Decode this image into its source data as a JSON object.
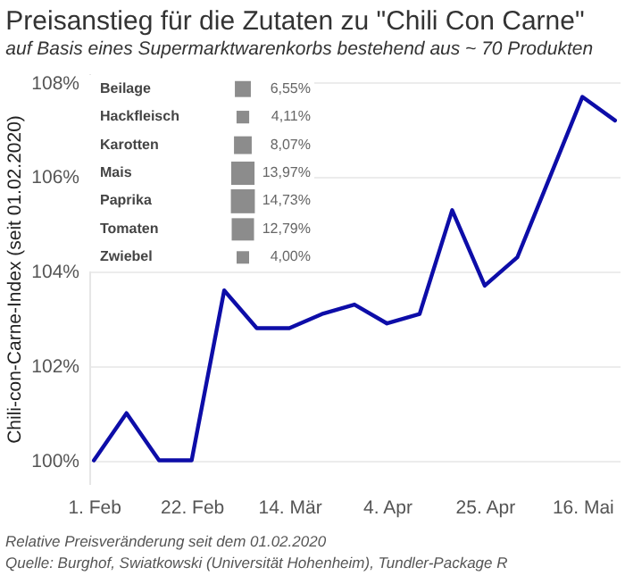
{
  "chart_data": [
    {
      "type": "line",
      "title": "Preisanstieg für die Zutaten zu \"Chili Con Carne\"",
      "subtitle": "auf Basis eines Supermarktwarenkorbs bestehend aus ~ 70 Produkten",
      "ylabel": "Chili-con-Carne-Index (seit 01.02.2020)",
      "x": [
        "2020-02-01",
        "2020-02-08",
        "2020-02-15",
        "2020-02-22",
        "2020-02-29",
        "2020-03-07",
        "2020-03-14",
        "2020-03-21",
        "2020-03-28",
        "2020-04-04",
        "2020-04-11",
        "2020-04-18",
        "2020-04-25",
        "2020-05-02",
        "2020-05-09",
        "2020-05-16",
        "2020-05-23"
      ],
      "series": [
        {
          "color": "#0d0da8",
          "values": [
            100.0,
            101.0,
            100.0,
            100.0,
            103.6,
            102.8,
            102.8,
            103.1,
            103.3,
            102.9,
            103.1,
            105.3,
            103.7,
            104.3,
            106.0,
            107.7,
            107.2
          ]
        }
      ],
      "xlim": [
        "2020-01-31",
        "2020-05-24"
      ],
      "xticks": [
        {
          "value": "2020-02-01",
          "label": "1. Feb"
        },
        {
          "value": "2020-02-22",
          "label": "22. Feb"
        },
        {
          "value": "2020-03-14",
          "label": "14. Mär"
        },
        {
          "value": "2020-04-04",
          "label": "4. Apr"
        },
        {
          "value": "2020-04-25",
          "label": "25. Apr"
        },
        {
          "value": "2020-05-16",
          "label": "16. Mai"
        }
      ],
      "ylim": [
        99.5,
        108.2
      ],
      "yticks": [
        {
          "value": 100,
          "label": "100%"
        },
        {
          "value": 102,
          "label": "102%"
        },
        {
          "value": 104,
          "label": "104%"
        },
        {
          "value": 106,
          "label": "106%"
        },
        {
          "value": 108,
          "label": "108%"
        }
      ],
      "grid": "y",
      "legend": false,
      "marker": "none",
      "line_style": "solid",
      "annotations": [
        "Relative Preisveränderung seit dem 01.02.2020",
        "Quelle: Burghof, Swiatkowski (Universität Hohenheim), Tundler-Package R"
      ]
    },
    {
      "type": "other",
      "categories": [
        "Beilage",
        "Hackfleisch",
        "Karotten",
        "Mais",
        "Paprika",
        "Tomaten",
        "Zwiebel"
      ],
      "values": [
        6.55,
        4.11,
        8.07,
        13.97,
        14.73,
        12.79,
        4.0
      ],
      "value_labels": [
        "6,55%",
        "4,11%",
        "8,07%",
        "13,97%",
        "14,73%",
        "12,79%",
        "4,00%"
      ]
    }
  ]
}
